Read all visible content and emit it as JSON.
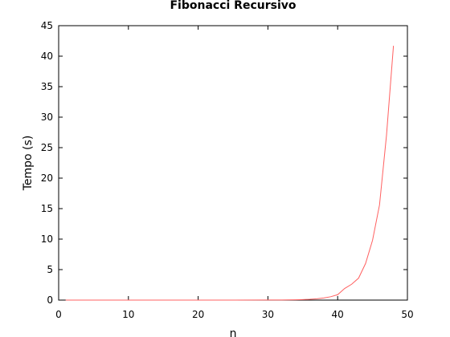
{
  "chart_data": {
    "type": "line",
    "title": "Fibonacci Recursivo",
    "xlabel": "n",
    "ylabel": "Tempo (s)",
    "xlim": [
      0,
      50
    ],
    "ylim": [
      0,
      45
    ],
    "xticks": [
      0,
      10,
      20,
      30,
      40,
      50
    ],
    "yticks": [
      0,
      5,
      10,
      15,
      20,
      25,
      30,
      35,
      40,
      45
    ],
    "grid": false,
    "legend": "none",
    "series": [
      {
        "color": "#ff6060",
        "x": [
          1,
          5,
          10,
          15,
          20,
          25,
          30,
          32,
          34,
          35,
          36,
          37,
          38,
          39,
          40,
          41,
          42,
          43,
          44,
          45,
          46,
          47,
          48
        ],
        "y": [
          0,
          0,
          0,
          0,
          0,
          0,
          0.01,
          0.02,
          0.05,
          0.08,
          0.13,
          0.21,
          0.34,
          0.55,
          0.89,
          1.9,
          2.6,
          3.6,
          6.0,
          9.8,
          15.6,
          27.0,
          41.7
        ]
      }
    ]
  }
}
